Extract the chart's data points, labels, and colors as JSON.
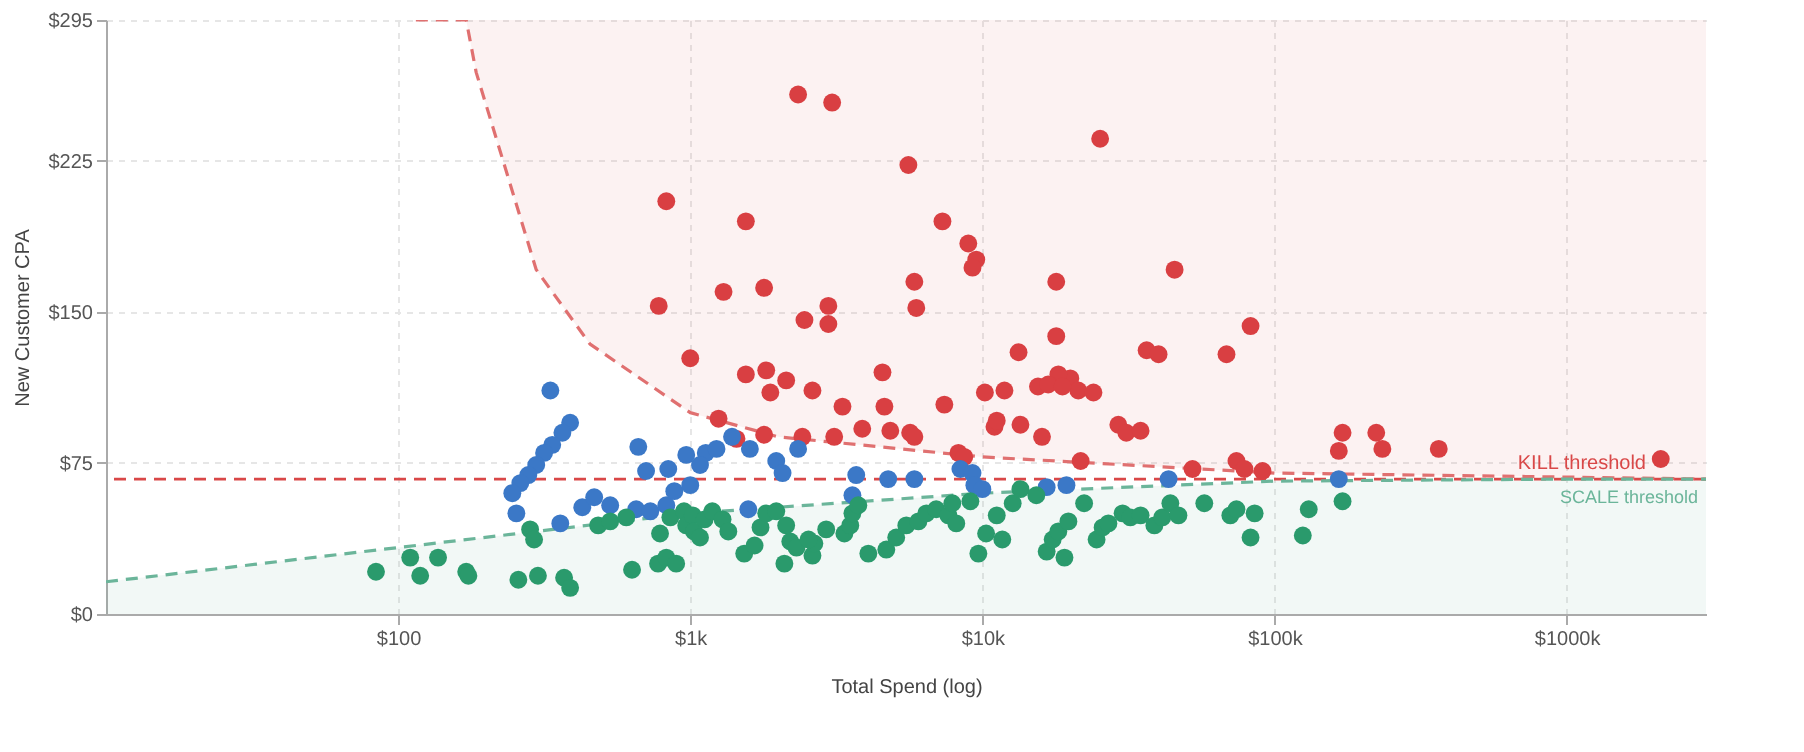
{
  "chart_data": {
    "type": "scatter",
    "xlabel": "Total Spend (log)",
    "ylabel": "New Customer CPA",
    "log": "x",
    "xlim": [
      10,
      3000000
    ],
    "ylim": [
      0,
      295
    ],
    "xticks": [
      {
        "value": 100,
        "label": "$100"
      },
      {
        "value": 1000,
        "label": "$1k"
      },
      {
        "value": 10000,
        "label": "$10k"
      },
      {
        "value": 100000,
        "label": "$100k"
      },
      {
        "value": 1000000,
        "label": "$1000k"
      }
    ],
    "yticks": [
      {
        "value": 0,
        "label": "$0"
      },
      {
        "value": 75,
        "label": "$75"
      },
      {
        "value": 150,
        "label": "$150"
      },
      {
        "value": 225,
        "label": "$225"
      },
      {
        "value": 295,
        "label": "$295"
      }
    ],
    "grid": true,
    "marker": "circle",
    "ref_lines": [
      {
        "axis": "y",
        "value": 67,
        "label": "KILL threshold",
        "color": "#d94848",
        "line_style": "dashed"
      }
    ],
    "series": [
      {
        "type": "line",
        "color": "#e07070",
        "line_style": "dashed",
        "marker": "none",
        "x": [
          115,
          171,
          185,
          297,
          454,
          1000,
          2000,
          10000,
          100000,
          1000000,
          3000000
        ],
        "values": [
          295,
          295,
          269,
          171,
          134,
          100,
          88,
          78,
          70,
          68,
          67
        ],
        "lower": [
          295,
          295,
          269,
          171,
          134,
          100,
          88,
          78,
          70,
          68,
          67
        ],
        "upper": [
          295,
          295,
          295,
          295,
          295,
          295,
          295,
          295,
          295,
          295,
          295
        ]
      },
      {
        "type": "line",
        "name": "SCALE threshold",
        "color": "#6bb59a",
        "line_style": "dashed",
        "marker": "none",
        "x": [
          10,
          100,
          1000,
          10000,
          100000,
          1000000,
          3000000
        ],
        "values": [
          16,
          33,
          50,
          60,
          66,
          67,
          67
        ],
        "lower": [
          0,
          0,
          0,
          0,
          0,
          0,
          0
        ],
        "upper": [
          16,
          33,
          50,
          60,
          66,
          67,
          67
        ]
      },
      {
        "color": "#d93f42",
        "x": [
          828,
          2340,
          3060,
          5580,
          25300,
          7300,
          8950,
          1550,
          45500,
          1300,
          1790,
          5850,
          780,
          2970,
          5940,
          9530,
          9250,
          17900,
          82800,
          2460,
          2970,
          1000,
          1550,
          1820,
          1880,
          2130,
          4550,
          2620,
          3320,
          4620,
          7410,
          10200,
          11900,
          13300,
          17900,
          20000,
          21300,
          24000,
          36500,
          40100,
          68500,
          18200,
          15500,
          16800,
          18800,
          11000,
          11200,
          1250,
          1440,
          1790,
          2420,
          3110,
          3880,
          4840,
          5660,
          5850,
          8280,
          8670,
          13500,
          16000,
          29200,
          31100,
          21700,
          34800,
          74100,
          78900,
          91000,
          52400,
          171000,
          166000,
          223000,
          234000,
          365000,
          2100000
        ],
        "values": [
          205,
          258,
          254,
          223,
          236,
          195,
          184,
          195,
          171,
          160,
          162,
          165,
          153,
          153,
          152,
          176,
          172,
          165,
          143,
          146,
          144,
          127,
          119,
          121,
          110,
          116,
          120,
          111,
          103,
          103,
          104,
          110,
          111,
          130,
          138,
          117,
          111,
          110,
          131,
          129,
          129,
          119,
          113,
          114,
          113,
          93,
          96,
          97,
          87,
          89,
          88,
          88,
          92,
          91,
          90,
          88,
          80,
          78,
          94,
          88,
          94,
          90,
          76,
          91,
          76,
          72,
          71,
          72,
          90,
          81,
          90,
          82,
          82,
          77
        ]
      },
      {
        "color": "#3b78c7",
        "x": [
          332,
          388,
          365,
          337,
          316,
          297,
          279,
          262,
          246,
          254,
          359,
          427,
          469,
          664,
          532,
          653,
          730,
          828,
          882,
          1000,
          841,
          706,
          969,
          1130,
          1230,
          1080,
          1390,
          1600,
          1970,
          2070,
          2340,
          3700,
          4760,
          5850,
          8410,
          9250,
          9390,
          10000,
          16600,
          19400,
          43400,
          166000,
          1580,
          3590
        ],
        "values": [
          111,
          95,
          90,
          84,
          80,
          74,
          69,
          65,
          60,
          50,
          45,
          53,
          58,
          83,
          54,
          52,
          51,
          54,
          61,
          64,
          72,
          71,
          79,
          80,
          82,
          74,
          88,
          82,
          76,
          70,
          82,
          69,
          67,
          67,
          72,
          70,
          64,
          62,
          63,
          64,
          67,
          67,
          52,
          59
        ]
      },
      {
        "color": "#2a9a6c",
        "x": [
          84,
          110,
          119,
          137,
          171,
          174,
          258,
          301,
          370,
          388,
          283,
          292,
          484,
          532,
          604,
          632,
          776,
          828,
          895,
          788,
          855,
          952,
          969,
          1020,
          1030,
          1080,
          1120,
          1190,
          1290,
          1350,
          1530,
          1660,
          1740,
          1820,
          1970,
          2130,
          2200,
          2310,
          2620,
          2660,
          2540,
          2920,
          3370,
          3530,
          3590,
          3760,
          4070,
          4690,
          5070,
          5490,
          6040,
          6430,
          6950,
          7650,
          7890,
          8140,
          9100,
          9690,
          10300,
          11200,
          11700,
          12700,
          13500,
          15300,
          16600,
          17400,
          18200,
          19700,
          22300,
          24600,
          25800,
          27000,
          30200,
          32100,
          34800,
          38800,
          41300,
          44000,
          46900,
          57500,
          70600,
          74100,
          82800,
          85500,
          125000,
          131000,
          171000,
          2100,
          19100
        ],
        "values": [
          21,
          28,
          19,
          28,
          21,
          19,
          17,
          19,
          18,
          13,
          42,
          37,
          44,
          46,
          48,
          22,
          25,
          28,
          25,
          40,
          48,
          51,
          44,
          49,
          41,
          38,
          47,
          51,
          47,
          41,
          30,
          34,
          43,
          50,
          51,
          44,
          36,
          33,
          29,
          35,
          37,
          42,
          40,
          44,
          50,
          54,
          30,
          32,
          38,
          44,
          46,
          50,
          52,
          49,
          55,
          45,
          56,
          30,
          40,
          49,
          37,
          55,
          62,
          59,
          31,
          37,
          41,
          46,
          55,
          37,
          43,
          45,
          50,
          48,
          49,
          44,
          48,
          55,
          49,
          55,
          49,
          52,
          38,
          50,
          39,
          52,
          56,
          25,
          28
        ]
      }
    ]
  }
}
